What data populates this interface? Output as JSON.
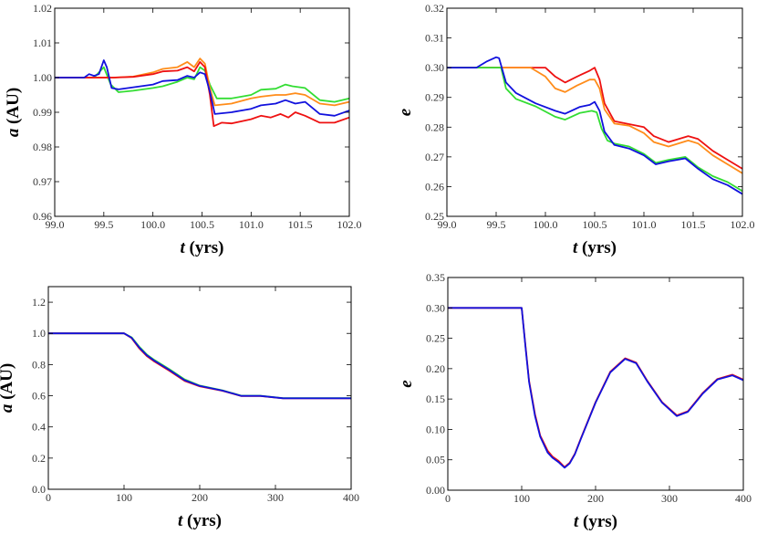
{
  "chart_data": [
    {
      "type": "line",
      "xlabel": {
        "sym": "t",
        "rest": " (yrs)"
      },
      "ylabel": {
        "sym": "a",
        "rest": " (AU)"
      },
      "xlim": [
        99.0,
        102.0
      ],
      "ylim": [
        0.96,
        1.02
      ],
      "xticks": [
        "99.0",
        "99.5",
        "100.0",
        "100.5",
        "101.0",
        "101.5",
        "102.0"
      ],
      "yticks": [
        "0.96",
        "0.97",
        "0.98",
        "0.99",
        "1.00",
        "1.01",
        "1.02"
      ],
      "series": [
        {
          "color": "#33dd33",
          "x": [
            99.0,
            99.25,
            99.4,
            99.5,
            99.57,
            99.65,
            99.8,
            100.0,
            100.1,
            100.25,
            100.35,
            100.42,
            100.48,
            100.53,
            100.58,
            100.65,
            100.8,
            101.0,
            101.1,
            101.25,
            101.35,
            101.42,
            101.55,
            101.7,
            101.85,
            102.0
          ],
          "y": [
            1.0,
            1.0,
            1.0,
            1.003,
            0.998,
            0.9958,
            0.9962,
            0.997,
            0.9975,
            0.9988,
            1.0,
            0.9995,
            1.003,
            1.002,
            0.998,
            0.994,
            0.994,
            0.995,
            0.9965,
            0.9968,
            0.998,
            0.9975,
            0.997,
            0.9935,
            0.993,
            0.994
          ]
        },
        {
          "color": "#ff8c1a",
          "x": [
            99.0,
            99.4,
            99.6,
            99.8,
            100.0,
            100.1,
            100.25,
            100.35,
            100.42,
            100.48,
            100.53,
            100.58,
            100.63,
            100.8,
            101.0,
            101.1,
            101.25,
            101.35,
            101.45,
            101.55,
            101.7,
            101.85,
            102.0
          ],
          "y": [
            1.0,
            1.0,
            1.0,
            1.0003,
            1.0015,
            1.0025,
            1.003,
            1.0045,
            1.003,
            1.0055,
            1.004,
            0.997,
            0.992,
            0.9925,
            0.994,
            0.9945,
            0.995,
            0.995,
            0.9955,
            0.995,
            0.9925,
            0.992,
            0.993
          ]
        },
        {
          "color": "#ee1111",
          "x": [
            99.0,
            99.4,
            99.6,
            99.8,
            100.0,
            100.1,
            100.25,
            100.35,
            100.42,
            100.48,
            100.53,
            100.58,
            100.62,
            100.7,
            100.8,
            101.0,
            101.1,
            101.2,
            101.3,
            101.38,
            101.45,
            101.55,
            101.7,
            101.85,
            102.0
          ],
          "y": [
            1.0,
            1.0,
            1.0,
            1.0002,
            1.001,
            1.0018,
            1.002,
            1.003,
            1.0018,
            1.0045,
            1.003,
            0.995,
            0.986,
            0.987,
            0.9868,
            0.988,
            0.989,
            0.9885,
            0.9895,
            0.9885,
            0.99,
            0.989,
            0.987,
            0.987,
            0.9885
          ]
        },
        {
          "color": "#1111dd",
          "x": [
            99.0,
            99.3,
            99.35,
            99.4,
            99.45,
            99.5,
            99.53,
            99.58,
            99.65,
            99.75,
            100.0,
            100.1,
            100.25,
            100.35,
            100.42,
            100.48,
            100.53,
            100.58,
            100.63,
            100.8,
            101.0,
            101.1,
            101.25,
            101.35,
            101.45,
            101.55,
            101.7,
            101.85,
            102.0
          ],
          "y": [
            1.0,
            1.0,
            1.001,
            1.0005,
            1.001,
            1.005,
            1.003,
            0.997,
            0.9966,
            0.997,
            0.998,
            0.999,
            0.9993,
            1.0005,
            1.0,
            1.0015,
            1.001,
            0.996,
            0.9895,
            0.99,
            0.991,
            0.992,
            0.9925,
            0.9935,
            0.9925,
            0.993,
            0.9895,
            0.989,
            0.9905
          ]
        }
      ]
    },
    {
      "type": "line",
      "xlabel": {
        "sym": "t",
        "rest": " (yrs)"
      },
      "ylabel": {
        "sym": "e",
        "rest": ""
      },
      "xlim": [
        99.0,
        102.0
      ],
      "ylim": [
        0.25,
        0.32
      ],
      "xticks": [
        "99.0",
        "99.5",
        "100.0",
        "100.5",
        "101.0",
        "101.5",
        "102.0"
      ],
      "yticks": [
        "0.25",
        "0.26",
        "0.27",
        "0.28",
        "0.29",
        "0.30",
        "0.31",
        "0.32"
      ],
      "series": [
        {
          "color": "#ee1111",
          "x": [
            99.0,
            99.6,
            100.0,
            100.1,
            100.2,
            100.32,
            100.45,
            100.5,
            100.55,
            100.6,
            100.7,
            100.85,
            101.0,
            101.1,
            101.25,
            101.45,
            101.55,
            101.7,
            101.85,
            102.0
          ],
          "y": [
            0.3,
            0.3,
            0.3,
            0.297,
            0.295,
            0.297,
            0.299,
            0.3,
            0.296,
            0.288,
            0.282,
            0.281,
            0.28,
            0.277,
            0.275,
            0.277,
            0.276,
            0.272,
            0.269,
            0.266
          ]
        },
        {
          "color": "#ff8c1a",
          "x": [
            99.0,
            99.6,
            99.85,
            100.0,
            100.1,
            100.2,
            100.32,
            100.45,
            100.5,
            100.55,
            100.6,
            100.7,
            100.85,
            101.0,
            101.1,
            101.25,
            101.45,
            101.55,
            101.7,
            101.85,
            102.0
          ],
          "y": [
            0.3,
            0.3,
            0.3,
            0.297,
            0.293,
            0.2918,
            0.294,
            0.296,
            0.296,
            0.293,
            0.286,
            0.2812,
            0.2805,
            0.278,
            0.275,
            0.2735,
            0.2755,
            0.2745,
            0.2705,
            0.2675,
            0.2645
          ]
        },
        {
          "color": "#33dd33",
          "x": [
            99.0,
            99.45,
            99.55,
            99.6,
            99.7,
            99.9,
            100.1,
            100.2,
            100.35,
            100.47,
            100.52,
            100.57,
            100.63,
            100.7,
            100.85,
            101.0,
            101.12,
            101.25,
            101.42,
            101.55,
            101.7,
            101.85,
            102.0
          ],
          "y": [
            0.3,
            0.3,
            0.3,
            0.293,
            0.2895,
            0.287,
            0.2835,
            0.2825,
            0.2848,
            0.2855,
            0.285,
            0.2795,
            0.2755,
            0.2745,
            0.2735,
            0.271,
            0.268,
            0.269,
            0.27,
            0.2665,
            0.2635,
            0.2615,
            0.2585
          ]
        },
        {
          "color": "#1111dd",
          "x": [
            99.0,
            99.3,
            99.4,
            99.5,
            99.53,
            99.6,
            99.7,
            99.9,
            100.1,
            100.2,
            100.35,
            100.45,
            100.5,
            100.55,
            100.6,
            100.7,
            100.85,
            101.0,
            101.12,
            101.25,
            101.42,
            101.55,
            101.7,
            101.85,
            102.0
          ],
          "y": [
            0.3,
            0.3,
            0.302,
            0.3035,
            0.3032,
            0.295,
            0.2915,
            0.288,
            0.2855,
            0.2845,
            0.2868,
            0.2875,
            0.2885,
            0.2855,
            0.2785,
            0.274,
            0.2728,
            0.2705,
            0.2675,
            0.2685,
            0.2695,
            0.266,
            0.2625,
            0.2605,
            0.2575
          ]
        }
      ]
    },
    {
      "type": "line",
      "xlabel": {
        "sym": "t",
        "rest": " (yrs)"
      },
      "ylabel": {
        "sym": "a",
        "rest": " (AU)"
      },
      "xlim": [
        0,
        400
      ],
      "ylim": [
        0.0,
        1.3
      ],
      "xticks": [
        "0",
        "100",
        "200",
        "300",
        "400"
      ],
      "yticks": [
        "0.0",
        "0.2",
        "0.4",
        "0.6",
        "0.8",
        "1.0",
        "1.2"
      ],
      "series": [
        {
          "color": "#33dd33",
          "x": [
            0,
            100,
            110,
            120,
            130,
            140,
            160,
            180,
            200,
            230,
            255,
            280,
            310,
            350,
            400
          ],
          "y": [
            1.0,
            1.0,
            0.975,
            0.915,
            0.865,
            0.83,
            0.77,
            0.705,
            0.665,
            0.635,
            0.6,
            0.6,
            0.585,
            0.585,
            0.585
          ]
        },
        {
          "color": "#ee1111",
          "x": [
            0,
            100,
            110,
            120,
            130,
            140,
            160,
            180,
            200,
            230,
            255,
            280,
            310,
            350,
            400
          ],
          "y": [
            1.0,
            1.0,
            0.97,
            0.905,
            0.855,
            0.82,
            0.76,
            0.695,
            0.66,
            0.632,
            0.598,
            0.598,
            0.583,
            0.583,
            0.583
          ]
        },
        {
          "color": "#1111dd",
          "x": [
            0,
            100,
            110,
            120,
            130,
            140,
            160,
            180,
            200,
            230,
            255,
            280,
            310,
            350,
            400
          ],
          "y": [
            1.0,
            1.0,
            0.972,
            0.91,
            0.86,
            0.825,
            0.765,
            0.7,
            0.663,
            0.633,
            0.599,
            0.599,
            0.584,
            0.584,
            0.584
          ]
        }
      ]
    },
    {
      "type": "line",
      "xlabel": {
        "sym": "t",
        "rest": " (yrs)"
      },
      "ylabel": {
        "sym": "e",
        "rest": ""
      },
      "xlim": [
        0,
        400
      ],
      "ylim": [
        0.0,
        0.35
      ],
      "xticks": [
        "0",
        "100",
        "200",
        "300",
        "400"
      ],
      "yticks": [
        "0.00",
        "0.05",
        "0.10",
        "0.15",
        "0.20",
        "0.25",
        "0.30",
        "0.35"
      ],
      "series": [
        {
          "color": "#ee1111",
          "x": [
            0,
            100,
            105,
            110,
            118,
            125,
            135,
            142,
            150,
            158,
            165,
            172,
            180,
            200,
            220,
            240,
            255,
            270,
            290,
            310,
            325,
            345,
            365,
            385,
            400
          ],
          "y": [
            0.3,
            0.3,
            0.24,
            0.18,
            0.125,
            0.09,
            0.065,
            0.055,
            0.048,
            0.038,
            0.045,
            0.06,
            0.085,
            0.145,
            0.195,
            0.217,
            0.21,
            0.18,
            0.145,
            0.123,
            0.13,
            0.16,
            0.183,
            0.19,
            0.182
          ]
        },
        {
          "color": "#1111dd",
          "x": [
            0,
            100,
            105,
            110,
            118,
            125,
            135,
            142,
            150,
            158,
            165,
            172,
            180,
            200,
            220,
            240,
            255,
            270,
            290,
            310,
            325,
            345,
            365,
            385,
            400
          ],
          "y": [
            0.3,
            0.3,
            0.238,
            0.178,
            0.122,
            0.088,
            0.062,
            0.053,
            0.046,
            0.037,
            0.044,
            0.059,
            0.084,
            0.144,
            0.194,
            0.216,
            0.209,
            0.179,
            0.144,
            0.122,
            0.129,
            0.159,
            0.182,
            0.189,
            0.181
          ]
        }
      ]
    }
  ]
}
